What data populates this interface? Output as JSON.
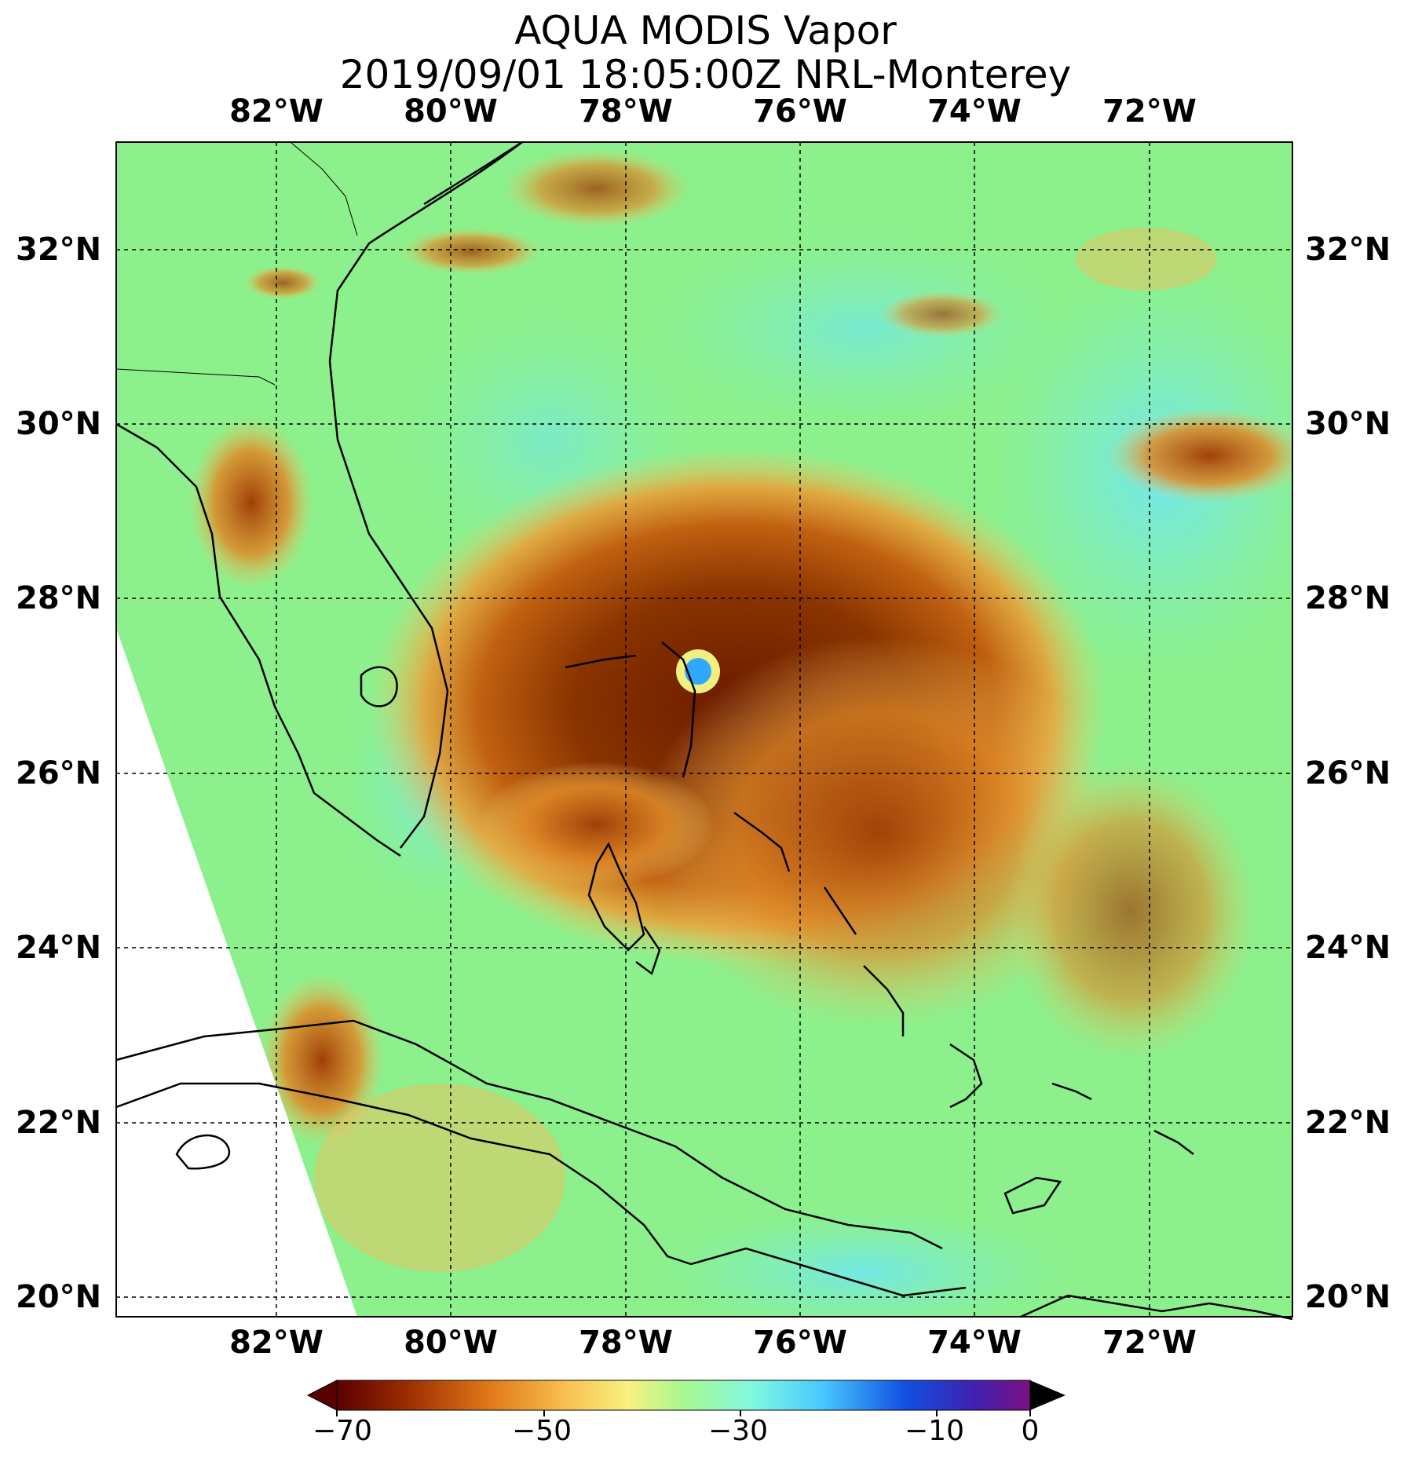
{
  "title": {
    "line1": "AQUA MODIS Vapor",
    "line2": "2019/09/01 18:05:00Z NRL-Monterey"
  },
  "map": {
    "lon_labels": [
      "82°W",
      "80°W",
      "78°W",
      "76°W",
      "74°W",
      "72°W"
    ],
    "lat_labels": [
      "32°N",
      "30°N",
      "28°N",
      "26°N",
      "24°N",
      "22°N",
      "20°N"
    ],
    "gridlines": "dashed",
    "colors": {
      "background_field": "#88f088",
      "storm_core": "#7a2a00",
      "storm_ring": "#d8761a",
      "cold_cloud": "#f0b040",
      "clear_air": "#80f0d8",
      "eye": "#30a8ff"
    }
  },
  "colorbar": {
    "ticks": [
      "−70",
      "−50",
      "−30",
      "−10",
      "0"
    ],
    "colors": [
      "#5a0000",
      "#a83800",
      "#e07818",
      "#f8b848",
      "#f8f080",
      "#c8f88a",
      "#88f8a8",
      "#80f8f8",
      "#38b0ff",
      "#1040d8",
      "#6020b0",
      "#7a1080"
    ]
  }
}
